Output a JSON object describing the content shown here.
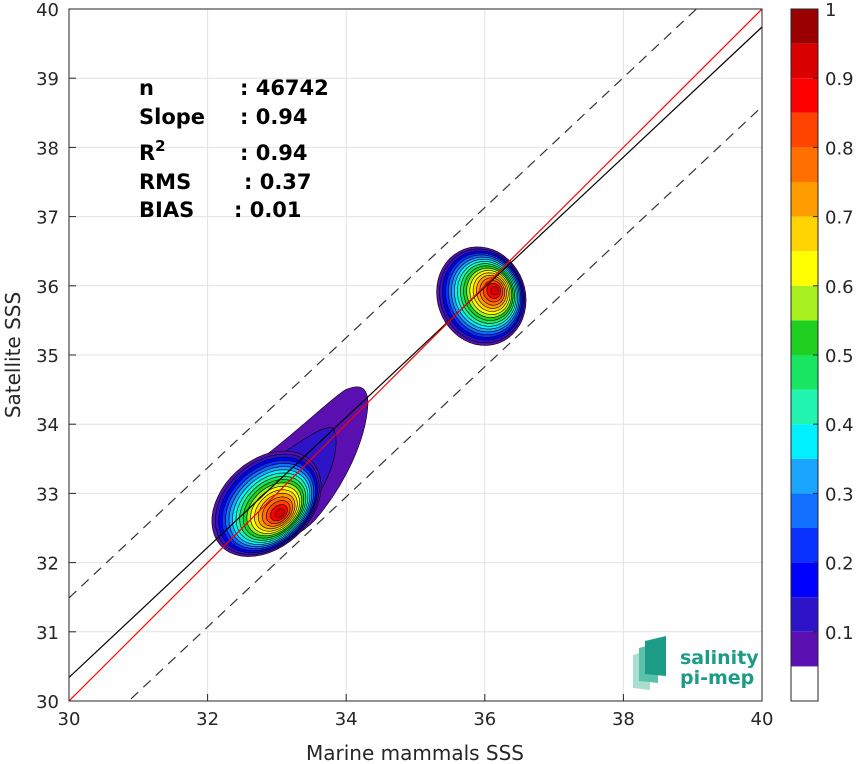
{
  "chart_data": {
    "type": "density-scatter",
    "xlabel": "Marine mammals SSS",
    "ylabel": "Satellite SSS",
    "xlim": [
      30,
      40
    ],
    "ylim": [
      30,
      40
    ],
    "xticks": [
      30,
      32,
      34,
      36,
      38,
      40
    ],
    "yticks": [
      30,
      31,
      32,
      33,
      34,
      35,
      36,
      37,
      38,
      39,
      40
    ],
    "grid": true,
    "stats": [
      {
        "key": "n",
        "label": "n",
        "value": ": 46742"
      },
      {
        "key": "slope",
        "label": "Slope",
        "value": ": 0.94"
      },
      {
        "key": "r2",
        "label": "R",
        "sup": "2",
        "value": ": 0.94"
      },
      {
        "key": "rms",
        "label": "RMS",
        "value": ": 0.37"
      },
      {
        "key": "bias",
        "label": "BIAS",
        "value": ": 0.01"
      }
    ],
    "lines": {
      "identity": {
        "slope": 1,
        "intercept": 0,
        "color": "#ff0000"
      },
      "fit": {
        "slope": 0.94,
        "intercept": 2.14,
        "color": "#000000"
      },
      "bounds_offset": 1.15
    },
    "clusters": [
      {
        "center": [
          32.85,
          32.85
        ],
        "extent": "32.25–34.35 x, 32.25–34.55 y"
      },
      {
        "center": [
          35.95,
          35.85
        ],
        "extent": "35.4–36.6 x, 35.1–36.55 y"
      }
    ],
    "colorbar": {
      "ticks": [
        0.1,
        0.2,
        0.3,
        0.4,
        0.5,
        0.6,
        0.7,
        0.8,
        0.9,
        1
      ],
      "tick_labels": [
        "0.1",
        "0.2",
        "0.3",
        "0.4",
        "0.5",
        "0.6",
        "0.7",
        "0.8",
        "0.9",
        "1"
      ],
      "levels": [
        0,
        0.05,
        0.1,
        0.15,
        0.2,
        0.25,
        0.3,
        0.35,
        0.4,
        0.45,
        0.5,
        0.55,
        0.6,
        0.65,
        0.7,
        0.75,
        0.8,
        0.85,
        0.9,
        0.95,
        1
      ],
      "colors": [
        "#ffffff",
        "#5a0fb0",
        "#2e14c8",
        "#0000ff",
        "#0a32ff",
        "#1170ff",
        "#1aa6ff",
        "#00f0ff",
        "#22f5b0",
        "#18e560",
        "#20d020",
        "#a8f020",
        "#ffff00",
        "#ffd400",
        "#ff9c00",
        "#ff7000",
        "#ff4400",
        "#ff0000",
        "#d80000",
        "#9a0000"
      ]
    }
  },
  "logo": {
    "line1": "salinity",
    "line2": "pi-mep"
  }
}
